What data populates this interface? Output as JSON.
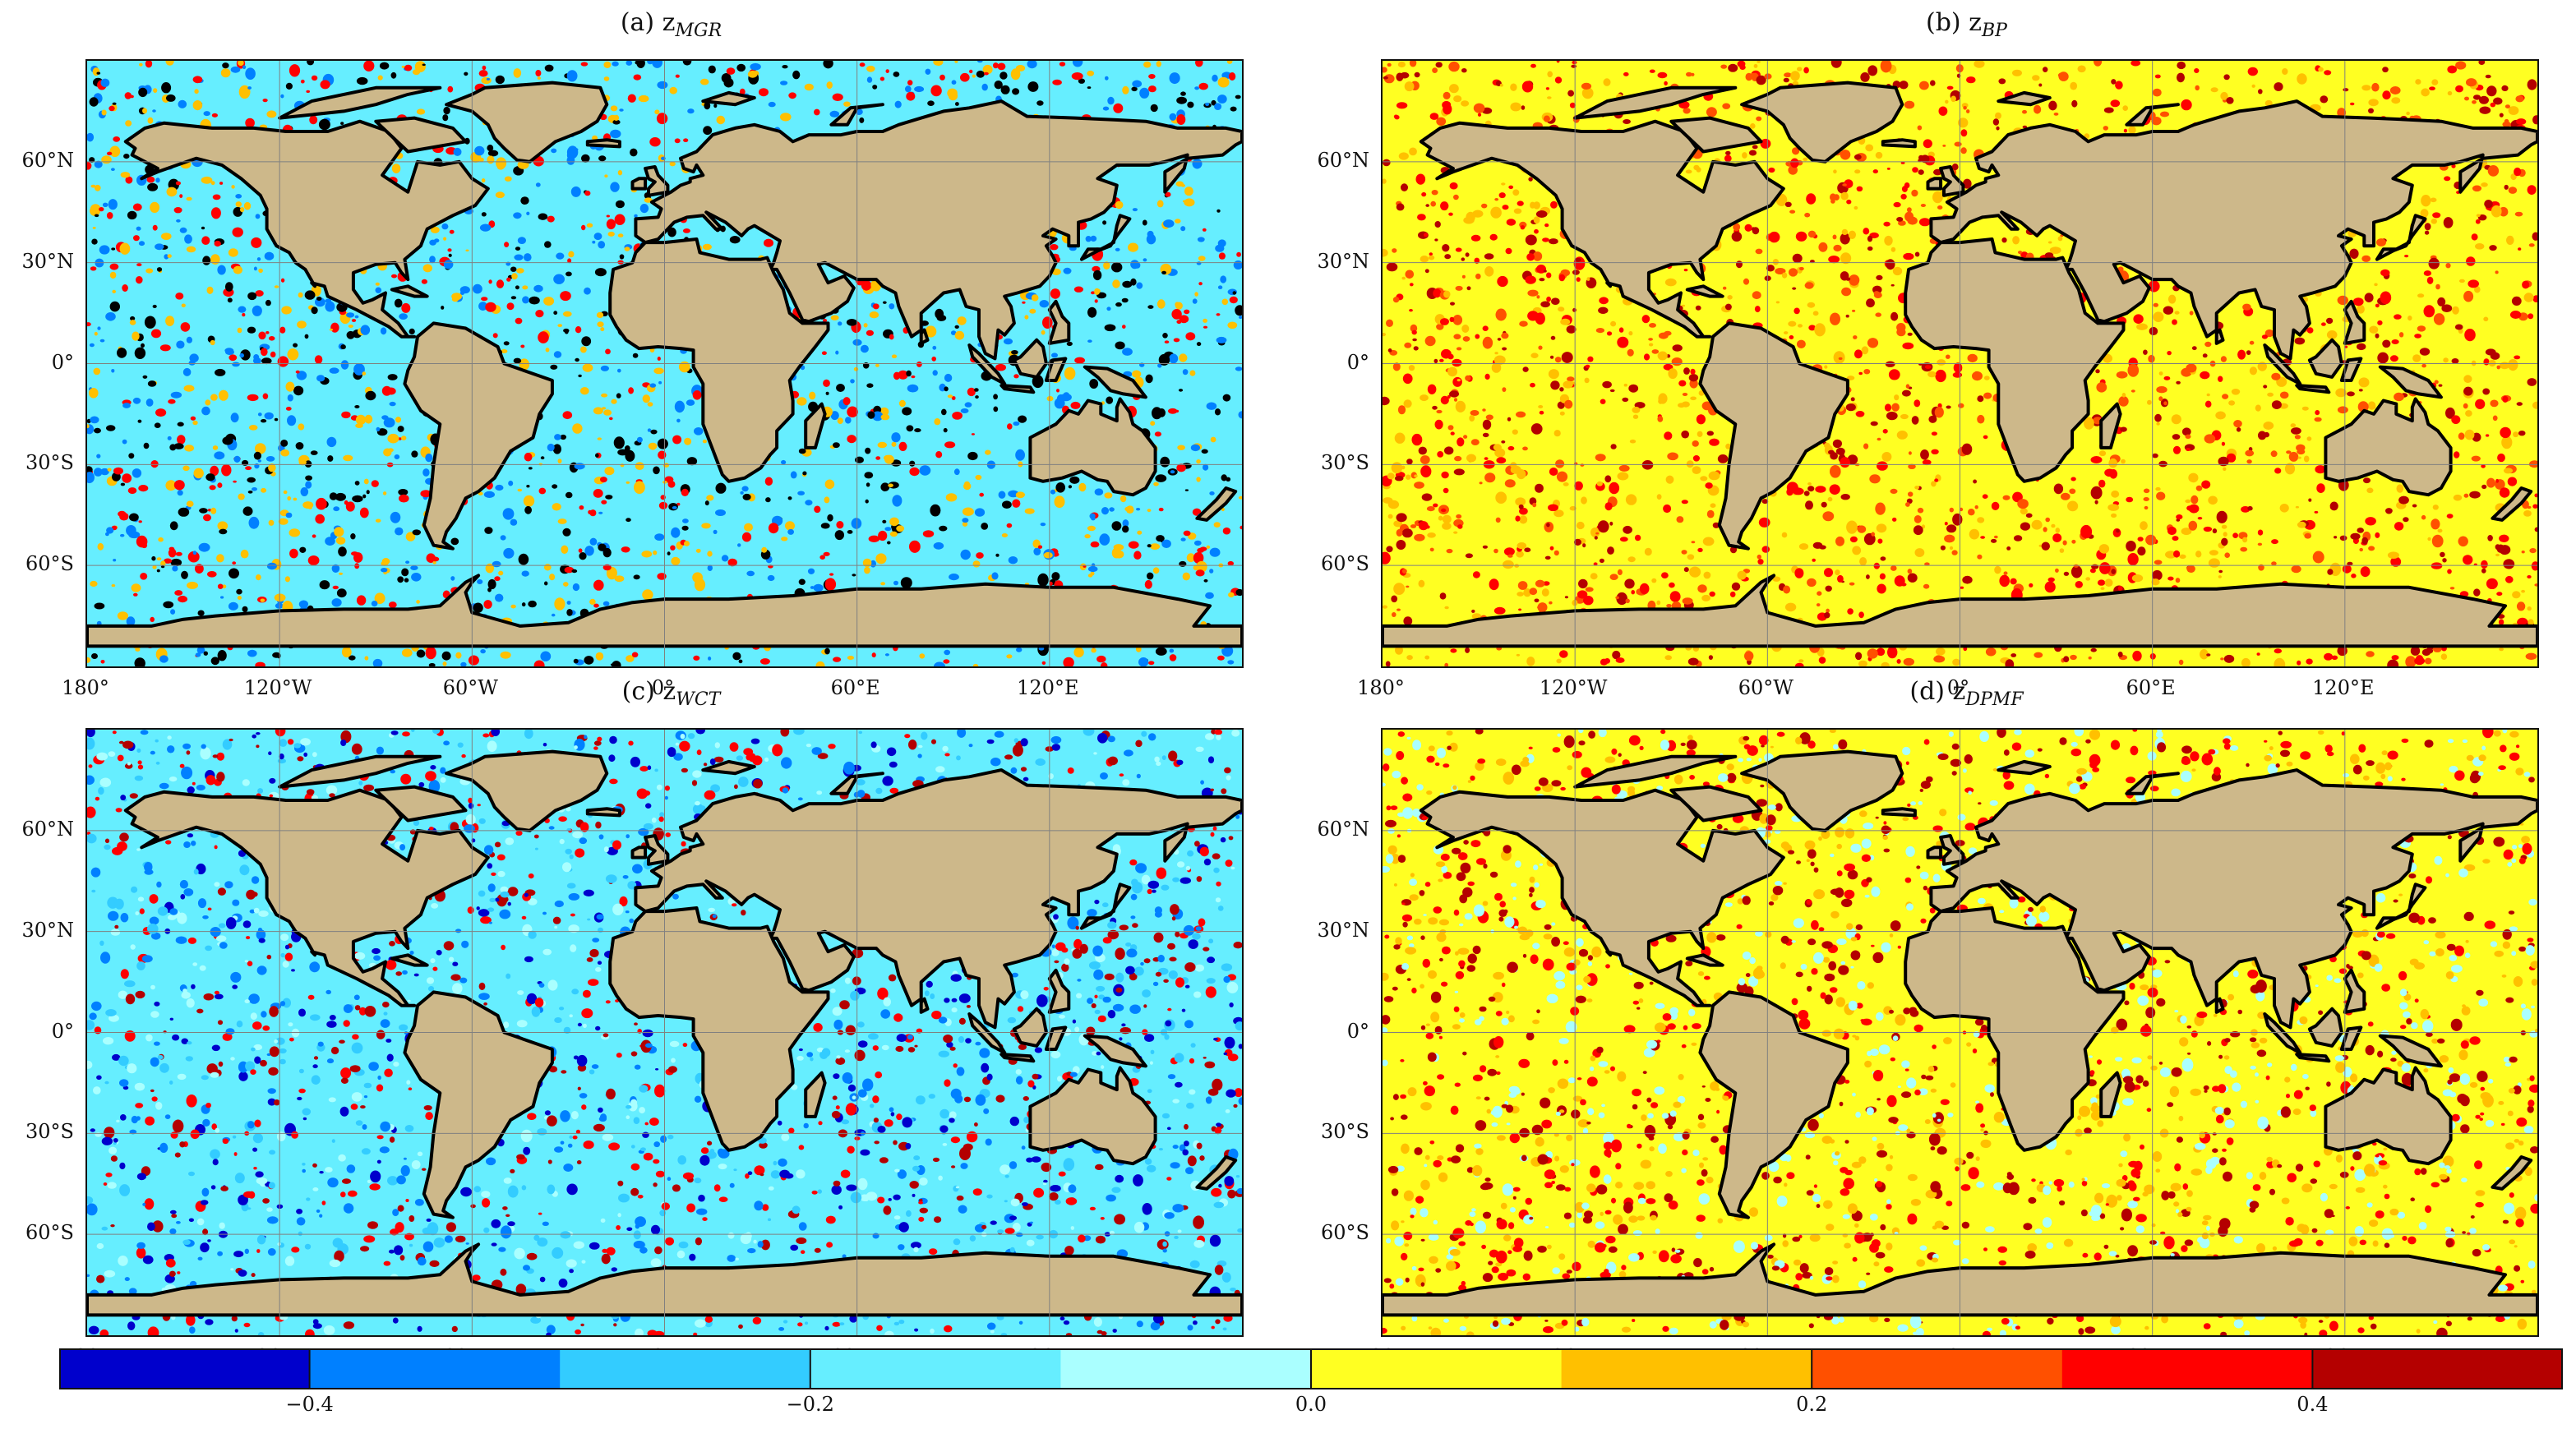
{
  "colors": {
    "land": "#cdb88a",
    "coast": "#000000",
    "grid": "#808080"
  },
  "panels": [
    {
      "id": "a",
      "prefix": "(a) z",
      "sub": "MGR",
      "base": 3,
      "variation": [
        1,
        6,
        8,
        10
      ]
    },
    {
      "id": "b",
      "prefix": "(b) z",
      "sub": "BP",
      "base": 5,
      "variation": [
        6,
        7,
        8,
        9
      ]
    },
    {
      "id": "c",
      "prefix": "(c) z",
      "sub": "WCT",
      "base": 3,
      "variation": [
        0,
        1,
        2,
        4,
        8,
        9
      ]
    },
    {
      "id": "d",
      "prefix": "(d) z",
      "sub": "DPMF",
      "base": 5,
      "variation": [
        4,
        6,
        8,
        9
      ]
    }
  ],
  "lat_labels": [
    "60°N",
    "30°N",
    "0°",
    "30°S",
    "60°S"
  ],
  "lon_labels": [
    "180°",
    "120°W",
    "60°W",
    "0°",
    "60°E",
    "120°E"
  ],
  "colorbar": {
    "colors": [
      "#0000cc",
      "#0080ff",
      "#33ccff",
      "#66eeff",
      "#aaffff",
      "#ffff22",
      "#ffc000",
      "#ff5000",
      "#ff0000",
      "#b40000"
    ],
    "ticks": [
      "−0.4",
      "−0.2",
      "0.0",
      "0.2",
      "0.4"
    ],
    "tick_values": [
      -0.4,
      -0.2,
      0.0,
      0.2,
      0.4
    ],
    "range": [
      -0.5,
      0.5
    ]
  }
}
